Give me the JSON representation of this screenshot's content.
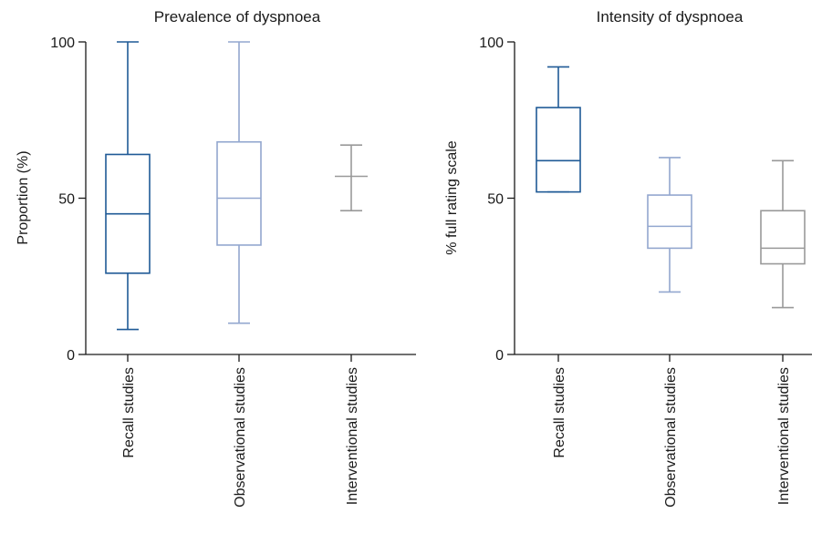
{
  "colors": {
    "recall": "#1f5a96",
    "observational": "#93a7cf",
    "interventional": "#999999",
    "axis": "#1a1a1a"
  },
  "chart_data": [
    {
      "type": "boxplot",
      "title": "Prevalence of dyspnoea",
      "xlabel": "",
      "ylabel": "Proportion (%)",
      "ylim": [
        0,
        100
      ],
      "yticks": [
        "0",
        "50",
        "100"
      ],
      "categories": [
        "Recall studies",
        "Observational studies",
        "Interventional studies"
      ],
      "boxes": [
        {
          "category": "Recall studies",
          "color_key": "recall",
          "min": 8,
          "q1": 26,
          "median": 45,
          "q3": 64,
          "max": 100
        },
        {
          "category": "Observational studies",
          "color_key": "observational",
          "min": 10,
          "q1": 35,
          "median": 50,
          "q3": 68,
          "max": 100
        },
        {
          "category": "Interventional studies",
          "color_key": "interventional",
          "min": 46,
          "q1": 57,
          "median": 57,
          "q3": 57,
          "max": 67
        }
      ]
    },
    {
      "type": "boxplot",
      "title": "Intensity of dyspnoea",
      "xlabel": "",
      "ylabel": "% full rating scale",
      "ylim": [
        0,
        100
      ],
      "yticks": [
        "0",
        "50",
        "100"
      ],
      "categories": [
        "Recall studies",
        "Observational studies",
        "Interventional studies"
      ],
      "boxes": [
        {
          "category": "Recall studies",
          "color_key": "recall",
          "min": 52,
          "q1": 52,
          "median": 62,
          "q3": 79,
          "max": 92
        },
        {
          "category": "Observational studies",
          "color_key": "observational",
          "min": 20,
          "q1": 34,
          "median": 41,
          "q3": 51,
          "max": 63
        },
        {
          "category": "Interventional studies",
          "color_key": "interventional",
          "min": 15,
          "q1": 29,
          "median": 34,
          "q3": 46,
          "max": 62
        }
      ]
    }
  ]
}
